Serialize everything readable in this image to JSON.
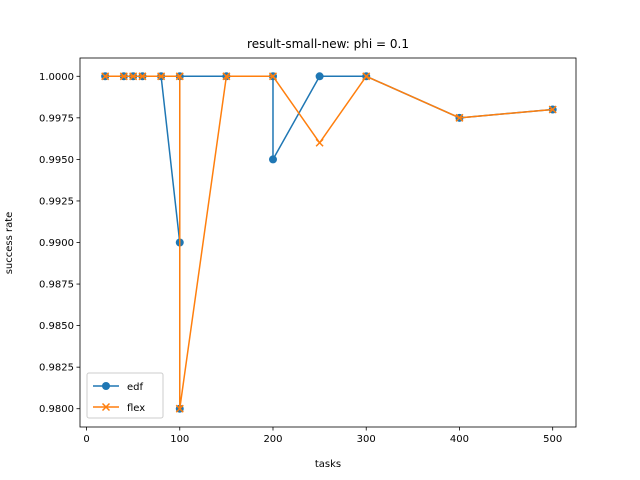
{
  "chart_data": {
    "type": "line",
    "title": "result-small-new: phi = 0.1",
    "xlabel": "tasks",
    "ylabel": "success rate",
    "xlim": [
      -7,
      525
    ],
    "ylim": [
      0.9789,
      1.0011
    ],
    "xticks": [
      0,
      100,
      200,
      300,
      400,
      500
    ],
    "yticks": [
      0.98,
      0.9825,
      0.985,
      0.9875,
      0.99,
      0.9925,
      0.995,
      0.9975,
      1.0
    ],
    "ytick_labels": [
      "0.9800",
      "0.9825",
      "0.9850",
      "0.9875",
      "0.9900",
      "0.9925",
      "0.9950",
      "0.9975",
      "1.0000"
    ],
    "xtick_labels": [
      "0",
      "100",
      "200",
      "300",
      "400",
      "500"
    ],
    "legend_position": "lower-left",
    "grid": false,
    "series": [
      {
        "name": "edf",
        "color": "#1f77b4",
        "marker": "circle",
        "x": [
          20,
          40,
          50,
          60,
          80,
          100,
          100,
          100,
          150,
          200,
          200,
          250,
          300,
          400,
          500
        ],
        "y": [
          1.0,
          1.0,
          1.0,
          1.0,
          1.0,
          0.99,
          0.98,
          1.0,
          1.0,
          1.0,
          0.995,
          1.0,
          1.0,
          0.9975,
          0.998
        ]
      },
      {
        "name": "flex",
        "color": "#ff7f0e",
        "marker": "x",
        "x": [
          20,
          40,
          50,
          60,
          80,
          100,
          100,
          150,
          200,
          250,
          300,
          400,
          500
        ],
        "y": [
          1.0,
          1.0,
          1.0,
          1.0,
          1.0,
          1.0,
          0.98,
          1.0,
          1.0,
          0.996,
          1.0,
          0.9975,
          0.998
        ]
      }
    ]
  }
}
